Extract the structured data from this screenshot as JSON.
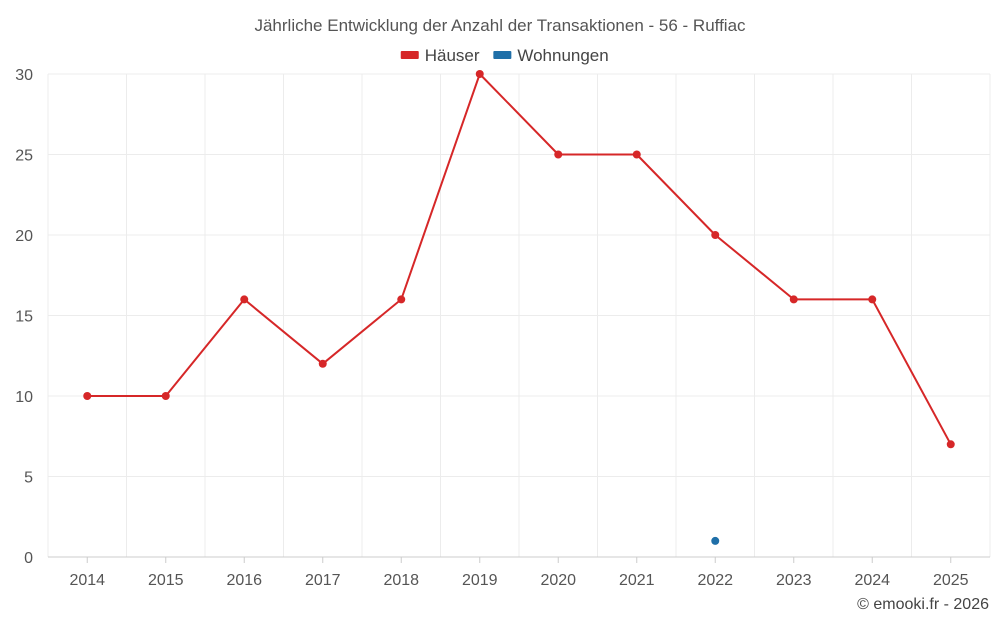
{
  "chart_data": {
    "type": "line",
    "title": "Jährliche Entwicklung der Anzahl der Transaktionen - 56 - Ruffiac",
    "xlabel": "",
    "ylabel": "",
    "categories": [
      "2014",
      "2015",
      "2016",
      "2017",
      "2018",
      "2019",
      "2020",
      "2021",
      "2022",
      "2023",
      "2024",
      "2025"
    ],
    "series": [
      {
        "name": "Häuser",
        "color": "#d62728",
        "values": [
          10,
          10,
          16,
          12,
          16,
          30,
          25,
          25,
          20,
          16,
          16,
          7
        ]
      },
      {
        "name": "Wohnungen",
        "color": "#1f6fa8",
        "values": [
          null,
          null,
          null,
          null,
          null,
          null,
          null,
          null,
          1,
          null,
          null,
          null
        ]
      }
    ],
    "ylim": [
      0,
      30
    ],
    "yticks": [
      0,
      5,
      10,
      15,
      20,
      25,
      30
    ],
    "grid": true,
    "legend_position": "top-center"
  },
  "credit": "© emooki.fr - 2026"
}
